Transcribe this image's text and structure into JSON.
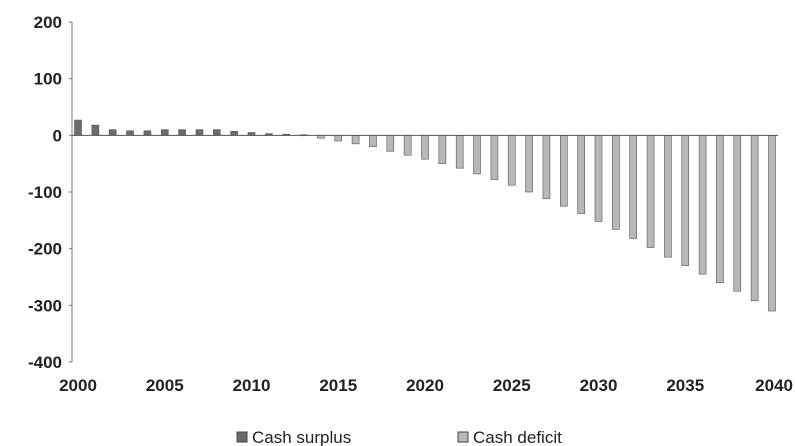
{
  "chart_data": {
    "type": "bar",
    "title": "",
    "xlabel": "",
    "ylabel": "",
    "ylim": [
      -400,
      200
    ],
    "yticks": [
      200,
      100,
      0,
      -100,
      -200,
      -300,
      -400
    ],
    "xlim": [
      2000,
      2040
    ],
    "xticks": [
      2000,
      2005,
      2010,
      2015,
      2020,
      2025,
      2030,
      2035,
      2040
    ],
    "xtick_labels": [
      "2000",
      "2005",
      "2010",
      "2015",
      "2020",
      "2025",
      "2030",
      "2035",
      "2040"
    ],
    "grid": false,
    "legend_position": "bottom",
    "x": [
      2000,
      2001,
      2002,
      2003,
      2004,
      2005,
      2006,
      2007,
      2008,
      2009,
      2010,
      2011,
      2012,
      2013,
      2014,
      2015,
      2016,
      2017,
      2018,
      2019,
      2020,
      2021,
      2022,
      2023,
      2024,
      2025,
      2026,
      2027,
      2028,
      2029,
      2030,
      2031,
      2032,
      2033,
      2034,
      2035,
      2036,
      2037,
      2038,
      2039,
      2040
    ],
    "series": [
      {
        "name": "Cash surplus",
        "color": "#6b6b6b",
        "values": [
          27,
          18,
          10,
          8,
          8,
          10,
          10,
          10,
          10,
          7,
          5,
          3,
          2,
          1,
          0,
          0,
          0,
          0,
          0,
          0,
          0,
          0,
          0,
          0,
          0,
          0,
          0,
          0,
          0,
          0,
          0,
          0,
          0,
          0,
          0,
          0,
          0,
          0,
          0,
          0,
          0
        ]
      },
      {
        "name": "Cash deficit",
        "color": "#b8b8b8",
        "values": [
          0,
          0,
          0,
          0,
          0,
          0,
          0,
          0,
          0,
          0,
          0,
          0,
          0,
          0,
          -5,
          -10,
          -15,
          -20,
          -28,
          -35,
          -42,
          -50,
          -58,
          -68,
          -78,
          -88,
          -100,
          -112,
          -125,
          -138,
          -152,
          -166,
          -182,
          -198,
          -215,
          -230,
          -245,
          -260,
          -275,
          -292,
          -310
        ]
      }
    ]
  }
}
